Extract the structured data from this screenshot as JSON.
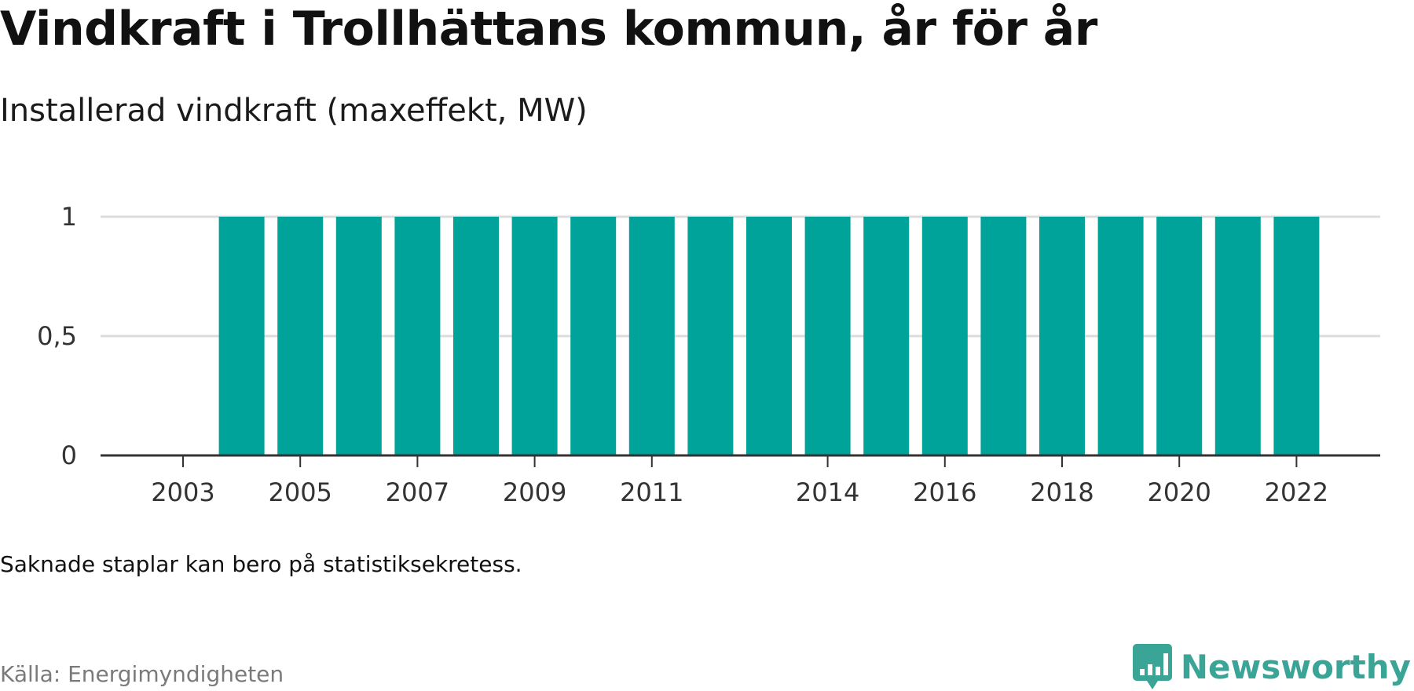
{
  "chart_data": {
    "type": "bar",
    "title": "Vindkraft i Trollhättans kommun, år för år",
    "subtitle": "Installerad vindkraft (maxeffekt, MW)",
    "categories": [
      "2003",
      "2004",
      "2005",
      "2006",
      "2007",
      "2008",
      "2009",
      "2010",
      "2011",
      "2012",
      "2013",
      "2014",
      "2015",
      "2016",
      "2017",
      "2018",
      "2019",
      "2020",
      "2021",
      "2022"
    ],
    "series": [
      {
        "values": [
          null,
          1,
          1,
          1,
          1,
          1,
          1,
          1,
          1,
          1,
          1,
          1,
          1,
          1,
          1,
          1,
          1,
          1,
          1,
          1
        ]
      }
    ],
    "x_tick_labels": [
      "2003",
      "2005",
      "2007",
      "2009",
      "2011",
      "2014",
      "2016",
      "2018",
      "2020",
      "2022"
    ],
    "y_ticks": [
      0,
      0.5,
      1
    ],
    "y_tick_labels": [
      "0",
      "0,5",
      "1"
    ],
    "ylim": [
      0,
      1
    ],
    "grid": true,
    "legend": "none",
    "bar_color": "#00a39a",
    "axis_color": "#333333",
    "grid_color": "#dcdcdc"
  },
  "footer": {
    "note": "Saknade staplar kan bero på statistiksekretess.",
    "source": "Källa: Energimyndigheten",
    "brand": "Newsworthy",
    "brand_color": "#3aa597"
  }
}
